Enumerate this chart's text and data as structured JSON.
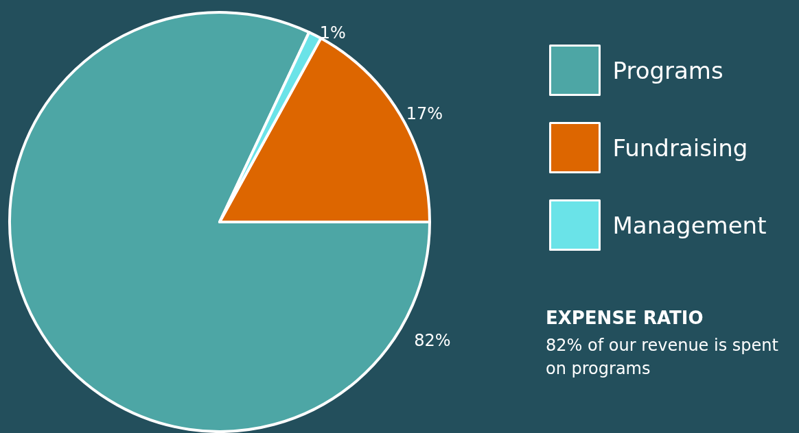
{
  "chart_data": {
    "type": "pie",
    "categories": [
      "Programs",
      "Fundraising",
      "Management"
    ],
    "values": [
      82,
      17,
      1
    ],
    "colors": [
      "#4da6a5",
      "#dd6600",
      "#6ae3e8"
    ],
    "value_labels": [
      "82%",
      "17%",
      "1%"
    ],
    "legend": "right",
    "annotations": [
      "EXPENSE RATIO",
      "82% of our revenue is spent on programs"
    ]
  }
}
